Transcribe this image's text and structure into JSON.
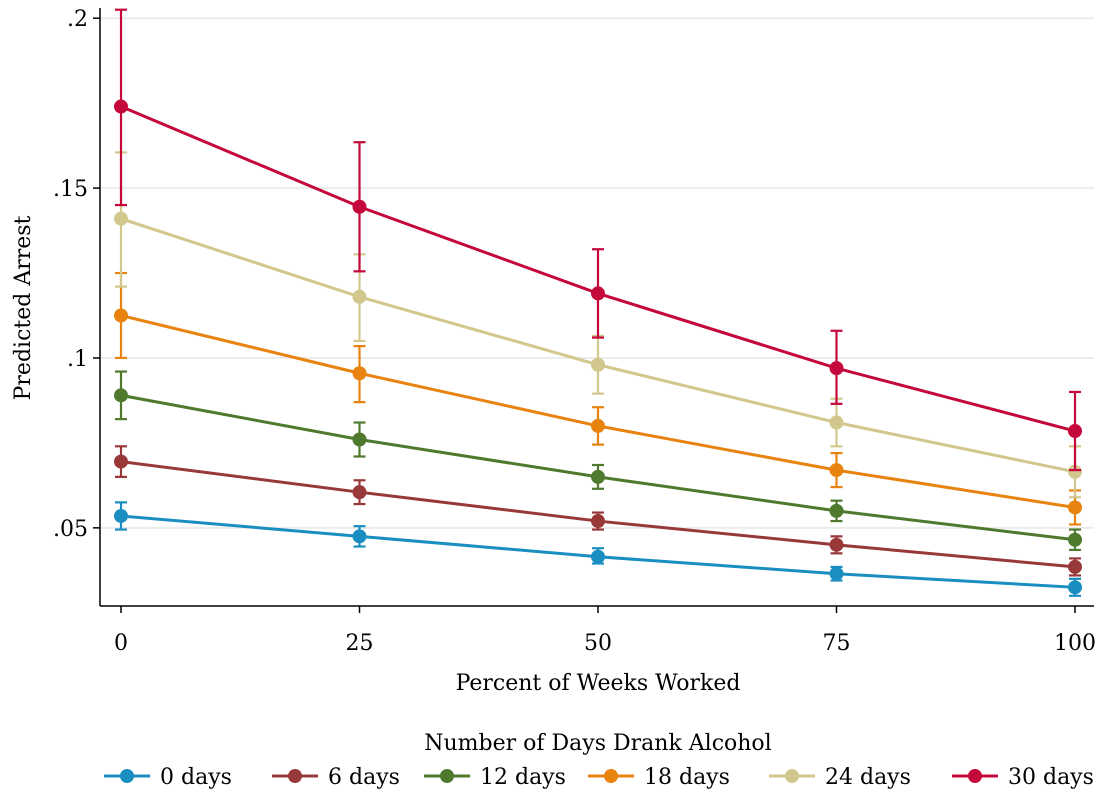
{
  "chart_data": {
    "type": "line",
    "title": "",
    "xlabel": "Percent of Weeks Worked",
    "ylabel": "Predicted Arrest",
    "x": [
      0,
      25,
      50,
      75,
      100
    ],
    "xticks": [
      0,
      25,
      50,
      75,
      100
    ],
    "xtick_labels": [
      "0",
      "25",
      "50",
      "75",
      "100"
    ],
    "yticks": [
      0.05,
      0.1,
      0.15,
      0.2
    ],
    "ytick_labels": [
      ".05",
      ".1",
      ".15",
      ".2"
    ],
    "xlim": [
      -2,
      102
    ],
    "ylim": [
      0.027,
      0.203
    ],
    "grid": "horizontal",
    "legend": {
      "title": "Number of Days Drank Alcohol",
      "placement": "bottom"
    },
    "series": [
      {
        "name": "0 days",
        "color": "#1a8ec0",
        "values": [
          0.0535,
          0.0475,
          0.0415,
          0.0365,
          0.0325
        ],
        "ci_low": [
          0.0495,
          0.0445,
          0.0395,
          0.0345,
          0.03
        ],
        "ci_high": [
          0.0575,
          0.0505,
          0.044,
          0.0385,
          0.035
        ]
      },
      {
        "name": "6 days",
        "color": "#983838",
        "values": [
          0.0695,
          0.0605,
          0.052,
          0.045,
          0.0385
        ],
        "ci_low": [
          0.065,
          0.057,
          0.0495,
          0.0425,
          0.036
        ],
        "ci_high": [
          0.074,
          0.064,
          0.0545,
          0.0475,
          0.041
        ]
      },
      {
        "name": "12 days",
        "color": "#4f7a2e",
        "values": [
          0.089,
          0.076,
          0.065,
          0.055,
          0.0465
        ],
        "ci_low": [
          0.082,
          0.071,
          0.0615,
          0.052,
          0.0435
        ],
        "ci_high": [
          0.096,
          0.081,
          0.0685,
          0.058,
          0.0495
        ]
      },
      {
        "name": "18 days",
        "color": "#e8830f",
        "values": [
          0.1125,
          0.0955,
          0.08,
          0.067,
          0.056
        ],
        "ci_low": [
          0.1,
          0.087,
          0.0745,
          0.062,
          0.051
        ],
        "ci_high": [
          0.125,
          0.1035,
          0.0855,
          0.072,
          0.061
        ]
      },
      {
        "name": "24 days",
        "color": "#d2c78d",
        "values": [
          0.141,
          0.118,
          0.098,
          0.081,
          0.0665
        ],
        "ci_low": [
          0.121,
          0.105,
          0.0895,
          0.074,
          0.059
        ],
        "ci_high": [
          0.1605,
          0.1305,
          0.1065,
          0.088,
          0.074
        ]
      },
      {
        "name": "30 days",
        "color": "#c4083b",
        "values": [
          0.174,
          0.1445,
          0.119,
          0.097,
          0.0785
        ],
        "ci_low": [
          0.145,
          0.1255,
          0.106,
          0.0865,
          0.067
        ],
        "ci_high": [
          0.2025,
          0.1635,
          0.132,
          0.108,
          0.09
        ]
      }
    ]
  }
}
